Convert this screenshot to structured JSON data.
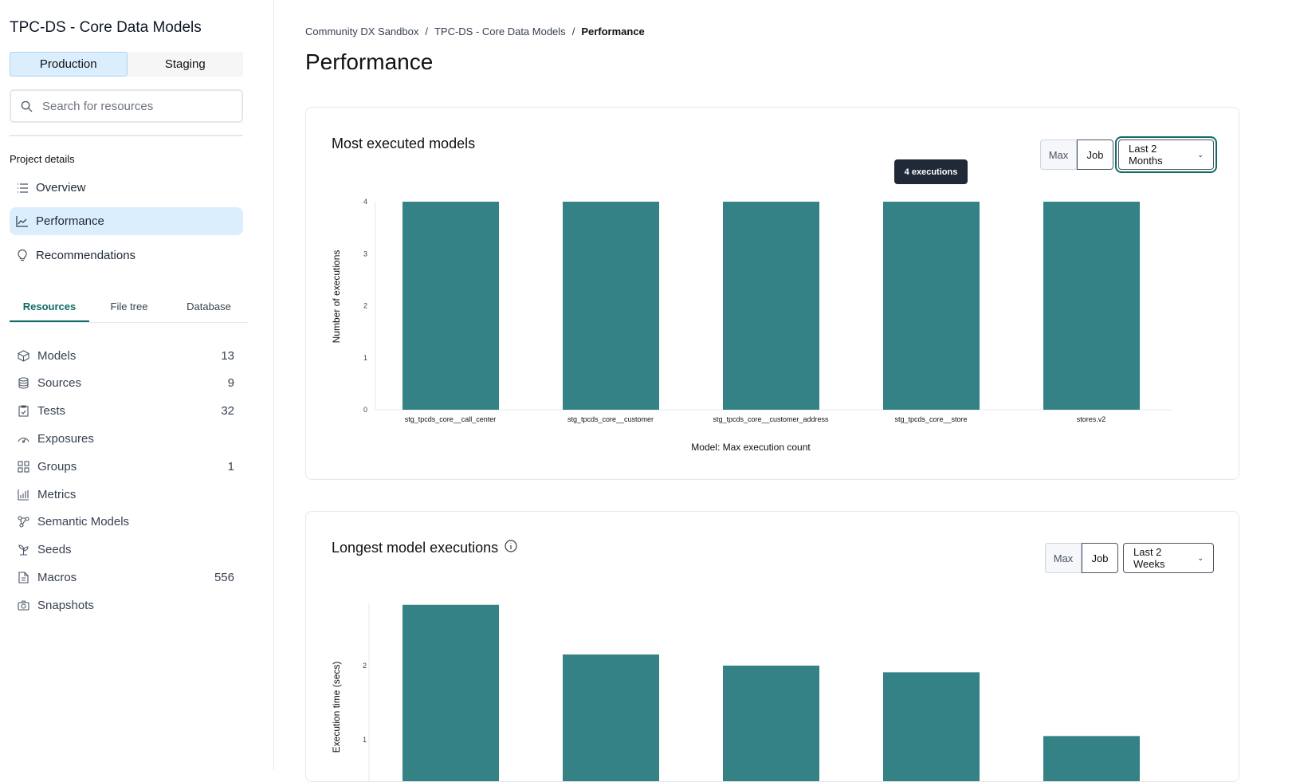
{
  "sidebar": {
    "project_title": "TPC-DS - Core Data Models",
    "env_tabs": [
      {
        "label": "Production",
        "active": true
      },
      {
        "label": "Staging",
        "active": false
      }
    ],
    "search_placeholder": "Search for resources",
    "section_label": "Project details",
    "nav": [
      {
        "label": "Overview",
        "icon": "list-icon"
      },
      {
        "label": "Performance",
        "icon": "chart-line-icon",
        "active": true
      },
      {
        "label": "Recommendations",
        "icon": "lightbulb-icon"
      }
    ],
    "resource_tabs": [
      {
        "label": "Resources",
        "active": true
      },
      {
        "label": "File tree"
      },
      {
        "label": "Database"
      }
    ],
    "resources": [
      {
        "label": "Models",
        "count": "13",
        "icon": "cube-icon"
      },
      {
        "label": "Sources",
        "count": "9",
        "icon": "database-icon"
      },
      {
        "label": "Tests",
        "count": "32",
        "icon": "clipboard-check-icon"
      },
      {
        "label": "Exposures",
        "count": "",
        "icon": "gauge-icon"
      },
      {
        "label": "Groups",
        "count": "1",
        "icon": "grid-icon"
      },
      {
        "label": "Metrics",
        "count": "",
        "icon": "bar-chart-icon"
      },
      {
        "label": "Semantic Models",
        "count": "",
        "icon": "nodes-icon"
      },
      {
        "label": "Seeds",
        "count": "",
        "icon": "sprout-icon"
      },
      {
        "label": "Macros",
        "count": "556",
        "icon": "file-icon"
      },
      {
        "label": "Snapshots",
        "count": "",
        "icon": "camera-icon"
      }
    ]
  },
  "breadcrumb": [
    "Community DX Sandbox",
    "TPC-DS - Core Data Models",
    "Performance"
  ],
  "page_title": "Performance",
  "colors": {
    "accent": "#0f6b66",
    "bar": "#348285",
    "active_bg": "#dbeefd"
  },
  "chart_data": [
    {
      "type": "bar",
      "title": "Most executed models",
      "toggle": [
        "Max",
        "Job"
      ],
      "selected_toggle": "Job",
      "range": "Last 2 Months",
      "tooltip": "4 executions",
      "categories": [
        "stg_tpcds_core__call_center",
        "stg_tpcds_core__customer",
        "stg_tpcds_core__customer_address",
        "stg_tpcds_core__store",
        "stores.v2"
      ],
      "values": [
        4,
        4,
        4,
        4,
        4
      ],
      "xlabel": "Model: Max execution count",
      "ylabel": "Number of executions",
      "ylim": [
        0,
        4
      ],
      "yticks": [
        0,
        1,
        2,
        3,
        4
      ]
    },
    {
      "type": "bar",
      "title": "Longest model executions",
      "toggle": [
        "Max",
        "Job"
      ],
      "selected_toggle": "Job",
      "range": "Last 2 Weeks",
      "values": [
        2.82,
        2.15,
        2.0,
        1.91,
        1.05
      ],
      "ylabel": "Execution time (secs)",
      "yticks": [
        1,
        2
      ]
    }
  ]
}
